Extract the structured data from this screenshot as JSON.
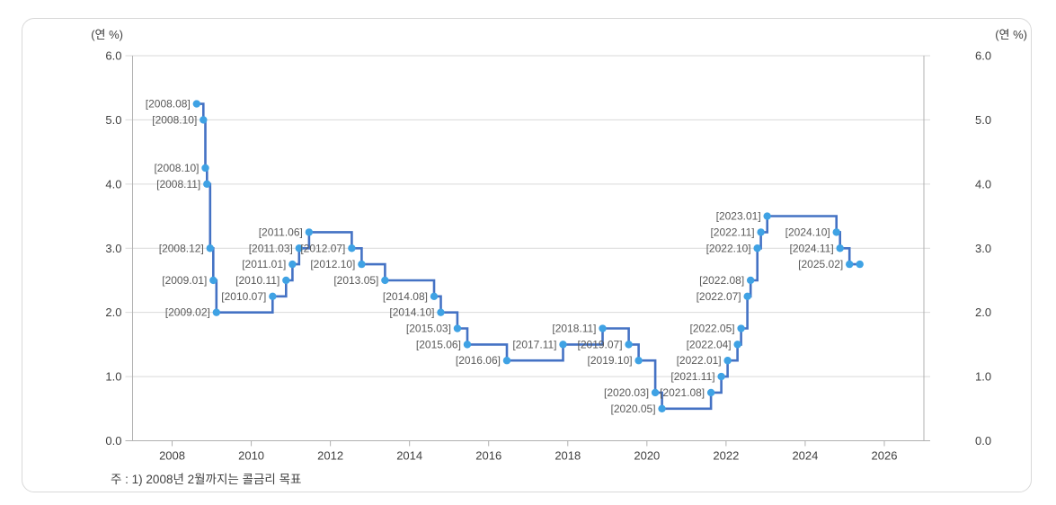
{
  "panel": {
    "unit_label_left": "(연 %)",
    "unit_label_right": "(연 %)",
    "footnote": "주 : 1) 2008년 2월까지는 콜금리 목표"
  },
  "chart_data": {
    "type": "line",
    "line_style": "step-after",
    "title": "",
    "ylabel_unit": "연 %",
    "ylim": [
      0.0,
      6.0
    ],
    "yticks": [
      0,
      1,
      2,
      3,
      4,
      5,
      6
    ],
    "ytick_labels": [
      "0.0",
      "1.0",
      "2.0",
      "3.0",
      "4.0",
      "5.0",
      "6.0"
    ],
    "xlim": [
      2007,
      2027
    ],
    "xticks": [
      2008,
      2010,
      2012,
      2014,
      2016,
      2018,
      2020,
      2022,
      2024,
      2026
    ],
    "grid": "horizontal",
    "legend": "none",
    "colors": {
      "line": "#4472c4",
      "marker": "#3fa2e4",
      "grid": "#d9d9d9",
      "axis": "#b0b0b0",
      "point_label": "#595959",
      "tick_text": "#404040"
    },
    "series": [
      {
        "name": "base-rate",
        "points": [
          {
            "label": "[2008.08]",
            "x": 2008.62,
            "y": 5.25
          },
          {
            "label": "[2008.10]",
            "x": 2008.79,
            "y": 5.0
          },
          {
            "label": "[2008.10]",
            "x": 2008.84,
            "y": 4.25
          },
          {
            "label": "[2008.11]",
            "x": 2008.88,
            "y": 4.0
          },
          {
            "label": "[2008.12]",
            "x": 2008.96,
            "y": 3.0
          },
          {
            "label": "[2009.01]",
            "x": 2009.04,
            "y": 2.5
          },
          {
            "label": "[2009.02]",
            "x": 2009.12,
            "y": 2.0
          },
          {
            "label": "[2010.07]",
            "x": 2010.54,
            "y": 2.25
          },
          {
            "label": "[2010.11]",
            "x": 2010.88,
            "y": 2.5
          },
          {
            "label": "[2011.01]",
            "x": 2011.04,
            "y": 2.75
          },
          {
            "label": "[2011.03]",
            "x": 2011.21,
            "y": 3.0
          },
          {
            "label": "[2011.06]",
            "x": 2011.46,
            "y": 3.25
          },
          {
            "label": "[2012.07]",
            "x": 2012.54,
            "y": 3.0
          },
          {
            "label": "[2012.10]",
            "x": 2012.79,
            "y": 2.75
          },
          {
            "label": "[2013.05]",
            "x": 2013.38,
            "y": 2.5
          },
          {
            "label": "[2014.08]",
            "x": 2014.62,
            "y": 2.25
          },
          {
            "label": "[2014.10]",
            "x": 2014.79,
            "y": 2.0
          },
          {
            "label": "[2015.03]",
            "x": 2015.21,
            "y": 1.75
          },
          {
            "label": "[2015.06]",
            "x": 2015.46,
            "y": 1.5
          },
          {
            "label": "[2016.06]",
            "x": 2016.46,
            "y": 1.25
          },
          {
            "label": "[2017.11]",
            "x": 2017.88,
            "y": 1.5
          },
          {
            "label": "[2018.11]",
            "x": 2018.88,
            "y": 1.75
          },
          {
            "label": "[2019.07]",
            "x": 2019.54,
            "y": 1.5
          },
          {
            "label": "[2019.10]",
            "x": 2019.79,
            "y": 1.25
          },
          {
            "label": "[2020.03]",
            "x": 2020.21,
            "y": 0.75
          },
          {
            "label": "[2020.05]",
            "x": 2020.38,
            "y": 0.5
          },
          {
            "label": "[2021.08]",
            "x": 2021.62,
            "y": 0.75
          },
          {
            "label": "[2021.11]",
            "x": 2021.88,
            "y": 1.0
          },
          {
            "label": "[2022.01]",
            "x": 2022.04,
            "y": 1.25
          },
          {
            "label": "[2022.04]",
            "x": 2022.29,
            "y": 1.5
          },
          {
            "label": "[2022.05]",
            "x": 2022.38,
            "y": 1.75
          },
          {
            "label": "[2022.07]",
            "x": 2022.54,
            "y": 2.25
          },
          {
            "label": "[2022.08]",
            "x": 2022.62,
            "y": 2.5
          },
          {
            "label": "[2022.10]",
            "x": 2022.79,
            "y": 3.0
          },
          {
            "label": "[2022.11]",
            "x": 2022.88,
            "y": 3.25
          },
          {
            "label": "[2023.01]",
            "x": 2023.04,
            "y": 3.5
          },
          {
            "label": "[2024.10]",
            "x": 2024.79,
            "y": 3.25
          },
          {
            "label": "[2024.11]",
            "x": 2024.88,
            "y": 3.0
          },
          {
            "label": "[2025.02]",
            "x": 2025.12,
            "y": 2.75
          },
          {
            "label": "",
            "x": 2025.38,
            "y": 2.75
          }
        ]
      }
    ],
    "footnote": "주 : 1) 2008년 2월까지는 콜금리 목표"
  }
}
